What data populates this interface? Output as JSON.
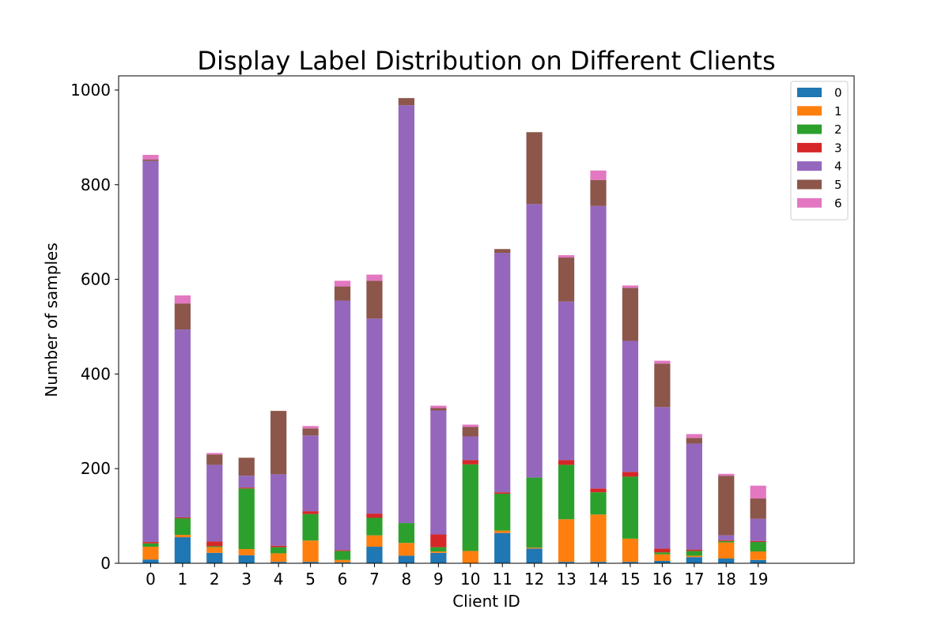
{
  "chart_data": {
    "type": "bar",
    "stacked": true,
    "title": "Display Label Distribution on Different Clients",
    "xlabel": "Client ID",
    "ylabel": "Number of samples",
    "categories": [
      "0",
      "1",
      "2",
      "3",
      "4",
      "5",
      "6",
      "7",
      "8",
      "9",
      "10",
      "11",
      "12",
      "13",
      "14",
      "15",
      "16",
      "17",
      "18",
      "19"
    ],
    "ylim": [
      0,
      1030
    ],
    "yticks": [
      0,
      200,
      400,
      600,
      800,
      1000
    ],
    "xlim": [
      -1,
      22
    ],
    "grid": false,
    "legend_position": "top-right",
    "series": [
      {
        "name": "0",
        "color": "#1f77b4",
        "values": [
          8,
          55,
          22,
          17,
          3,
          3,
          2,
          35,
          16,
          22,
          0,
          64,
          31,
          3,
          3,
          3,
          5,
          13,
          10,
          7
        ]
      },
      {
        "name": "1",
        "color": "#ff7f0e",
        "values": [
          27,
          5,
          12,
          13,
          18,
          45,
          5,
          24,
          27,
          3,
          26,
          5,
          2,
          90,
          100,
          49,
          14,
          3,
          34,
          18
        ]
      },
      {
        "name": "2",
        "color": "#2ca02c",
        "values": [
          7,
          35,
          2,
          128,
          13,
          56,
          19,
          37,
          42,
          9,
          183,
          78,
          148,
          115,
          47,
          131,
          4,
          10,
          3,
          20
        ]
      },
      {
        "name": "3",
        "color": "#d62728",
        "values": [
          3,
          2,
          10,
          2,
          3,
          6,
          2,
          9,
          0,
          27,
          9,
          3,
          0,
          10,
          8,
          10,
          8,
          3,
          2,
          2
        ]
      },
      {
        "name": "4",
        "color": "#9467bd",
        "values": [
          805,
          397,
          162,
          25,
          151,
          160,
          527,
          412,
          883,
          262,
          50,
          506,
          578,
          335,
          597,
          277,
          299,
          224,
          10,
          47
        ]
      },
      {
        "name": "5",
        "color": "#8c564b",
        "values": [
          3,
          55,
          22,
          38,
          134,
          15,
          30,
          80,
          15,
          5,
          20,
          8,
          152,
          93,
          55,
          112,
          92,
          12,
          126,
          43
        ]
      },
      {
        "name": "6",
        "color": "#e377c2",
        "values": [
          10,
          17,
          3,
          0,
          0,
          5,
          12,
          13,
          0,
          5,
          5,
          0,
          0,
          5,
          20,
          5,
          6,
          8,
          4,
          27
        ]
      }
    ]
  }
}
